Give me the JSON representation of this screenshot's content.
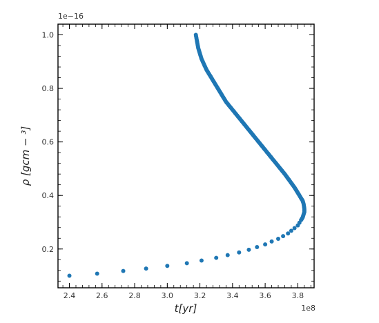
{
  "chart_data": {
    "type": "scatter",
    "xlabel": "t[yr]",
    "ylabel": "ρ [gcm − ³]",
    "x_offset_label": "1e8",
    "y_offset_label": "1e−16",
    "xlim": [
      2.33,
      3.9
    ],
    "ylim": [
      0.055,
      1.04
    ],
    "x_ticks": [
      2.4,
      2.6,
      2.8,
      3.0,
      3.2,
      3.4,
      3.6,
      3.8
    ],
    "x_tick_labels": [
      "2.4",
      "2.6",
      "2.8",
      "3.0",
      "3.2",
      "3.4",
      "3.6",
      "3.8"
    ],
    "y_ticks": [
      0.2,
      0.4,
      0.6,
      0.8,
      1.0
    ],
    "y_tick_labels": [
      "0.2",
      "0.4",
      "0.6",
      "0.8",
      "1.0"
    ],
    "marker_color": "#1f77b4",
    "series": [
      {
        "x": [
          2.4,
          2.57,
          2.73,
          2.87,
          3.0,
          3.12,
          3.21,
          3.3,
          3.37,
          3.44,
          3.5,
          3.55,
          3.6,
          3.64,
          3.68,
          3.71,
          3.74,
          3.76,
          3.78,
          3.8,
          3.81,
          3.82,
          3.83,
          3.835,
          3.84,
          3.84,
          3.838,
          3.835,
          3.83,
          3.82,
          3.8,
          3.78,
          3.75,
          3.72,
          3.68,
          3.64,
          3.6,
          3.56,
          3.52,
          3.48,
          3.44,
          3.4,
          3.36,
          3.32,
          3.28,
          3.24,
          3.21,
          3.19,
          3.175
        ],
        "y": [
          0.1,
          0.108,
          0.118,
          0.127,
          0.137,
          0.147,
          0.157,
          0.167,
          0.177,
          0.187,
          0.197,
          0.207,
          0.217,
          0.228,
          0.238,
          0.248,
          0.258,
          0.268,
          0.278,
          0.288,
          0.298,
          0.308,
          0.318,
          0.328,
          0.338,
          0.35,
          0.36,
          0.37,
          0.38,
          0.39,
          0.41,
          0.43,
          0.455,
          0.48,
          0.51,
          0.54,
          0.57,
          0.6,
          0.63,
          0.66,
          0.69,
          0.72,
          0.75,
          0.79,
          0.83,
          0.87,
          0.91,
          0.95,
          1.0
        ]
      }
    ]
  }
}
